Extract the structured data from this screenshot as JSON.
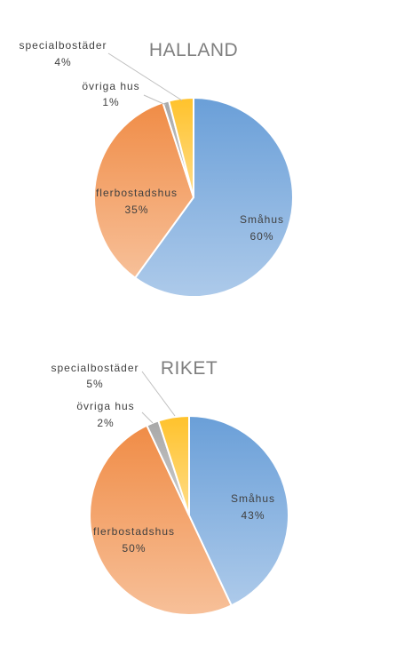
{
  "colors": {
    "smahus": "#6a9fd8",
    "flerbostadshus": "#f08c46",
    "ovriga_hus": "#a8a8a8",
    "specialbostader": "#ffc22b",
    "title": "#7f7f7f",
    "label": "#404040"
  },
  "chart_data": [
    {
      "type": "pie",
      "title": "HALLAND",
      "slices": [
        {
          "label": "Småhus",
          "value": 60,
          "display": "60%"
        },
        {
          "label": "flerbostadshus",
          "value": 35,
          "display": "35%"
        },
        {
          "label": "övriga hus",
          "value": 1,
          "display": "1%"
        },
        {
          "label": "specialbostäder",
          "value": 4,
          "display": "4%"
        }
      ]
    },
    {
      "type": "pie",
      "title": "RIKET",
      "slices": [
        {
          "label": "Småhus",
          "value": 43,
          "display": "43%"
        },
        {
          "label": "flerbostadshus",
          "value": 50,
          "display": "50%"
        },
        {
          "label": "övriga hus",
          "value": 2,
          "display": "2%"
        },
        {
          "label": "specialbostäder",
          "value": 5,
          "display": "5%"
        }
      ]
    }
  ]
}
